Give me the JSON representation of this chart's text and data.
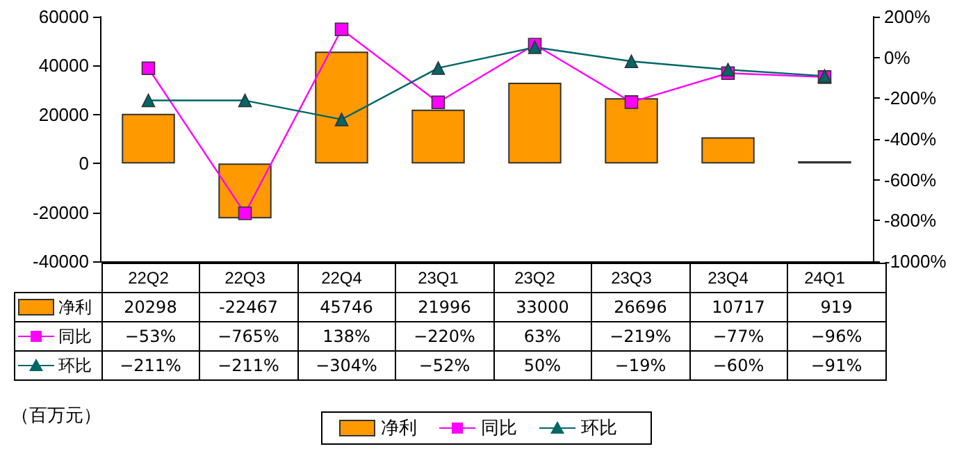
{
  "chart_data": {
    "type": "bar",
    "categories": [
      "22Q2",
      "22Q3",
      "22Q4",
      "23Q1",
      "23Q2",
      "23Q3",
      "23Q4",
      "24Q1"
    ],
    "series": [
      {
        "name": "净利",
        "color": "#ff9900",
        "values": [
          20298,
          -22467,
          45746,
          21996,
          33000,
          26696,
          10717,
          919
        ],
        "value_labels": [
          "20298",
          "-22467",
          "45746",
          "21996",
          "33000",
          "26696",
          "10717",
          "919"
        ]
      },
      {
        "name": "同比",
        "type": "line",
        "axis": "y2",
        "marker": "square",
        "color": "#ff00ff",
        "values": [
          -53,
          -765,
          138,
          -220,
          63,
          -219,
          -77,
          -96
        ],
        "value_labels": [
          "−53%",
          "−765%",
          "138%",
          "−220%",
          "63%",
          "−219%",
          "−77%",
          "−96%"
        ]
      },
      {
        "name": "环比",
        "type": "line",
        "axis": "y2",
        "marker": "triangle",
        "color": "#006666",
        "values": [
          -211,
          -211,
          -304,
          -52,
          50,
          -19,
          -60,
          -91
        ],
        "value_labels": [
          "−211%",
          "−211%",
          "−304%",
          "−52%",
          "50%",
          "−19%",
          "−60%",
          "−91%"
        ]
      }
    ],
    "ylim": [
      -40000,
      60000
    ],
    "yticks": [
      -40000,
      -20000,
      0,
      20000,
      40000,
      60000
    ],
    "y2lim": [
      -1000,
      200
    ],
    "y2ticks": [
      {
        "value": -1000,
        "label": "-1000%"
      },
      {
        "value": -800,
        "label": "-800%"
      },
      {
        "value": -600,
        "label": "-600%"
      },
      {
        "value": -400,
        "label": "-400%"
      },
      {
        "value": -200,
        "label": "-200%"
      },
      {
        "value": 0,
        "label": "0%"
      },
      {
        "value": 200,
        "label": "200%"
      }
    ],
    "legend": "bottom",
    "annotations": [
      "（百万元）"
    ]
  }
}
